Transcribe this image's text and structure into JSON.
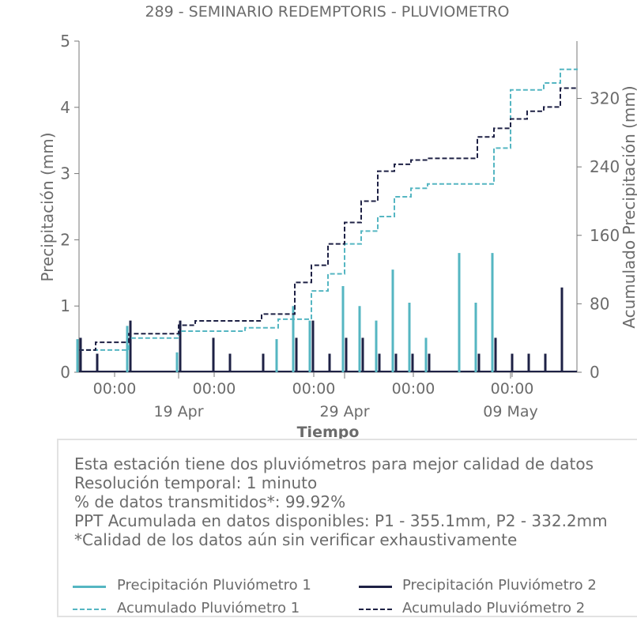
{
  "chart_data": {
    "type": "line",
    "title": "289 - SEMINARIO REDEMPTORIS - PLUVIOMETRO",
    "xlabel": "Tiempo",
    "ylabel_left": "Precipitación (mm)",
    "ylabel_right": "Acumulado Precipitación (mm)",
    "ylim_left": [
      0,
      5
    ],
    "ylim_right": [
      0,
      387
    ],
    "yticks_left": [
      "0",
      "1",
      "2",
      "3",
      "4",
      "5"
    ],
    "yticks_right": [
      "0",
      "80",
      "160",
      "240",
      "320"
    ],
    "xlim_days": [
      "2023-04-13",
      "2023-05-13"
    ],
    "xticks_minor": [
      "00:00",
      "00:00",
      "00:00",
      "00:00",
      "00:00"
    ],
    "xticks_major": [
      "19 Apr",
      "29 Apr",
      "09 May"
    ],
    "grid": false,
    "series": [
      {
        "name": "Precipitación Pluviómetro 1",
        "style": "bars",
        "color": "#55b6c2",
        "x": [
          "2023-04-13",
          "2023-04-16",
          "2023-04-19",
          "2023-04-25",
          "2023-04-26",
          "2023-04-27",
          "2023-04-29",
          "2023-04-29",
          "2023-04-30",
          "2023-05-01",
          "2023-05-02",
          "2023-05-03",
          "2023-05-04",
          "2023-05-06",
          "2023-05-07",
          "2023-05-07",
          "2023-05-08"
        ],
        "values": [
          0.5,
          0.7,
          0.3,
          0.5,
          1.0,
          0.78,
          1.3,
          1.3,
          1.0,
          0.78,
          1.55,
          1.05,
          0.52,
          1.8,
          0.52,
          1.05,
          1.8
        ]
      },
      {
        "name": "Precipitación Pluviómetro 2",
        "style": "bars",
        "color": "#1e2145",
        "x": [
          "2023-04-13",
          "2023-04-14",
          "2023-04-16",
          "2023-04-19",
          "2023-04-21",
          "2023-04-22",
          "2023-04-24",
          "2023-04-26",
          "2023-04-27",
          "2023-04-28",
          "2023-04-29",
          "2023-04-30",
          "2023-05-01",
          "2023-05-02",
          "2023-05-03",
          "2023-05-04",
          "2023-05-07",
          "2023-05-08",
          "2023-05-09",
          "2023-05-10",
          "2023-05-11",
          "2023-05-12"
        ],
        "values": [
          0.52,
          0.28,
          0.78,
          0.78,
          0.52,
          0.28,
          0.28,
          0.52,
          0.78,
          0.28,
          0.52,
          0.52,
          0.28,
          0.28,
          0.28,
          0.28,
          0.28,
          0.52,
          0.28,
          0.28,
          0.28,
          1.28
        ]
      },
      {
        "name": "Acumulado Pluviómetro 1",
        "style": "dashed",
        "color": "#55b6c2",
        "axis": "right",
        "x": [
          "2023-04-13",
          "2023-04-16",
          "2023-04-19",
          "2023-04-23",
          "2023-04-25",
          "2023-04-27",
          "2023-04-28",
          "2023-04-29",
          "2023-04-30",
          "2023-05-01",
          "2023-05-02",
          "2023-05-03",
          "2023-05-04",
          "2023-05-07",
          "2023-05-08",
          "2023-05-09",
          "2023-05-11",
          "2023-05-12",
          "2023-05-13"
        ],
        "values": [
          26,
          40,
          48,
          52,
          62,
          95,
          115,
          150,
          165,
          182,
          205,
          215,
          220,
          220,
          262,
          330,
          338,
          354,
          355
        ]
      },
      {
        "name": "Acumulado Pluviómetro 2",
        "style": "dashed",
        "color": "#1e2145",
        "axis": "right",
        "x": [
          "2023-04-13",
          "2023-04-14",
          "2023-04-16",
          "2023-04-19",
          "2023-04-20",
          "2023-04-24",
          "2023-04-26",
          "2023-04-27",
          "2023-04-28",
          "2023-04-29",
          "2023-04-30",
          "2023-05-01",
          "2023-05-02",
          "2023-05-03",
          "2023-05-04",
          "2023-05-07",
          "2023-05-08",
          "2023-05-09",
          "2023-05-10",
          "2023-05-11",
          "2023-05-12",
          "2023-05-13"
        ],
        "values": [
          26,
          35,
          45,
          55,
          60,
          68,
          105,
          125,
          150,
          175,
          200,
          235,
          243,
          248,
          250,
          275,
          285,
          296,
          305,
          310,
          332,
          332
        ]
      }
    ],
    "legend_position": "bottom"
  },
  "info": {
    "lines": [
      "Esta estación tiene dos pluviómetros para mejor calidad de datos",
      "Resolución temporal: 1 minuto",
      "% de datos transmitidos*: 99.92%",
      "PPT Acumulada en datos disponibles: P1 - 355.1mm, P2 - 332.2mm",
      "*Calidad de los datos aún sin verificar exhaustivamente"
    ]
  },
  "colors": {
    "p1": "#55b6c2",
    "p2": "#1e2145",
    "text": "#6b6b6b"
  }
}
